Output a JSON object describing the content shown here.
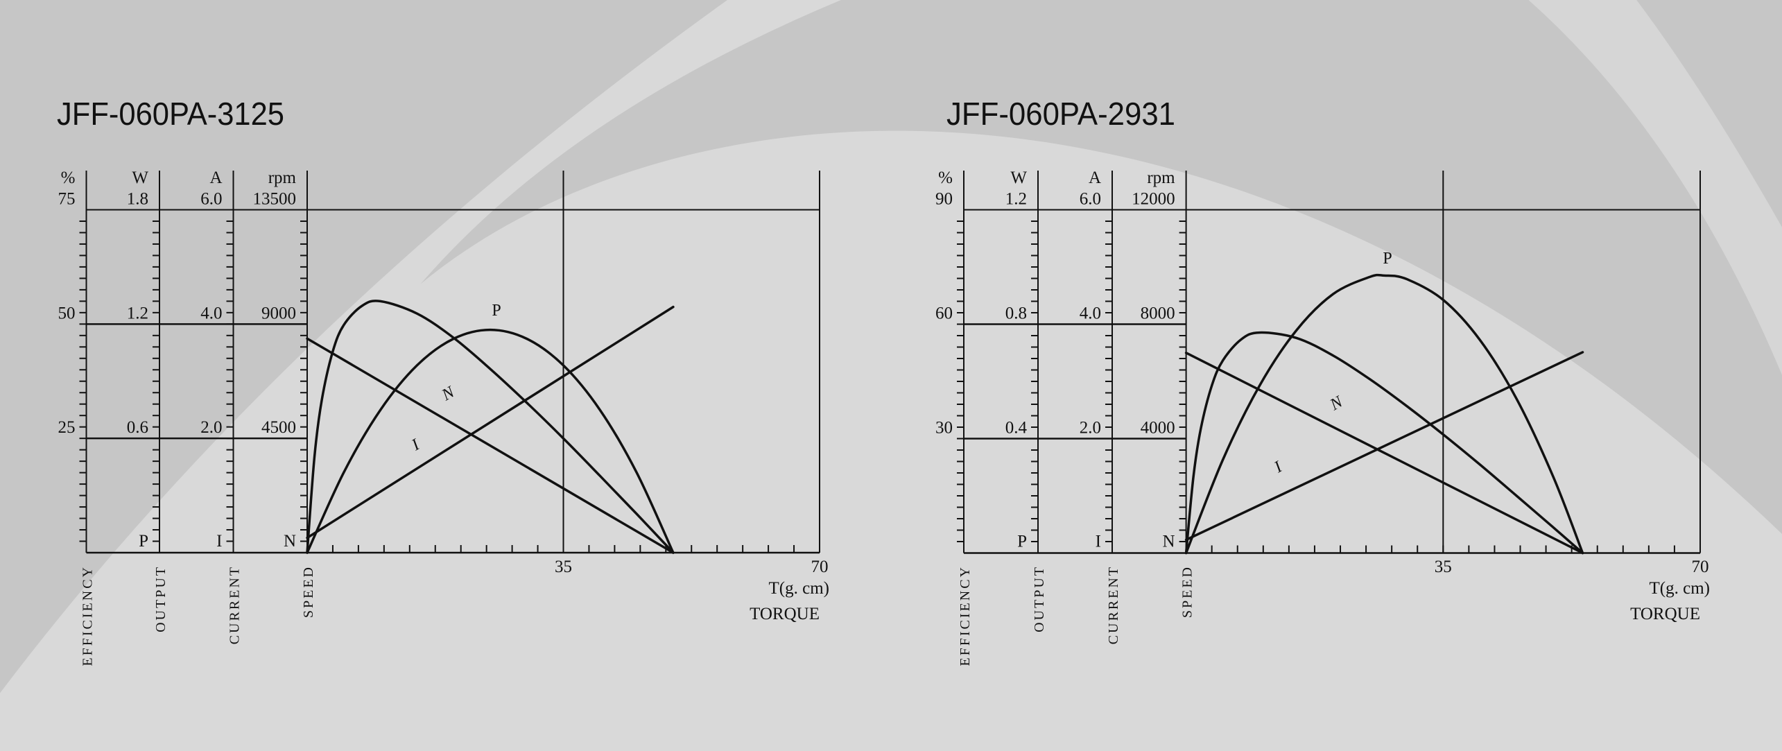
{
  "background": {
    "base": "#d9d9d9",
    "band": "#c6c6c6"
  },
  "chart_data": [
    {
      "type": "line",
      "title": "JFF-060PA-3125",
      "grid": true,
      "x": {
        "label": "T(g. cm)",
        "name": "TORQUE",
        "range": [
          0,
          70
        ],
        "ticks": [
          35,
          70
        ],
        "tick_labels": [
          "35",
          "70"
        ]
      },
      "y_axes": [
        {
          "key": "efficiency",
          "name": "EFFICIENCY",
          "unit": "%",
          "range": [
            0,
            75
          ],
          "tick_labels": [
            "25",
            "50",
            "75"
          ],
          "marker": ""
        },
        {
          "key": "output",
          "name": "OUTPUT",
          "unit": "W",
          "range": [
            0,
            1.8
          ],
          "tick_labels": [
            "0.6",
            "1.2",
            "1.8"
          ],
          "marker": "P"
        },
        {
          "key": "current",
          "name": "CURRENT",
          "unit": "A",
          "range": [
            0,
            6.0
          ],
          "tick_labels": [
            "2.0",
            "4.0",
            "6.0"
          ],
          "marker": "I"
        },
        {
          "key": "speed",
          "name": "SPEED",
          "unit": "rpm",
          "range": [
            0,
            13500
          ],
          "tick_labels": [
            "4500",
            "9000",
            "13500"
          ],
          "marker": "N"
        }
      ],
      "series": [
        {
          "name": "N",
          "axis": "speed",
          "x": [
            0,
            50
          ],
          "y": [
            8430,
            0
          ]
        },
        {
          "name": "I",
          "axis": "current",
          "x": [
            0,
            50
          ],
          "y": [
            0.26,
            4.3
          ]
        },
        {
          "name": "P",
          "axis": "output",
          "x": [
            0,
            5,
            10,
            15,
            20,
            25,
            30,
            35,
            40,
            45,
            50
          ],
          "y": [
            0,
            0.421,
            0.749,
            0.983,
            1.123,
            1.17,
            1.123,
            0.983,
            0.749,
            0.421,
            0
          ]
        },
        {
          "name": "",
          "axis": "efficiency",
          "x": [
            0,
            1,
            2,
            3.5,
            5,
            7.5,
            10,
            15,
            20,
            25,
            30,
            35,
            40,
            45,
            50
          ],
          "y": [
            0,
            21.1,
            33.4,
            44.0,
            49.8,
            54.0,
            55.0,
            52.3,
            47.0,
            40.2,
            32.8,
            25.0,
            16.8,
            8.5,
            0
          ]
        }
      ]
    },
    {
      "type": "line",
      "title": "JFF-060PA-2931",
      "grid": true,
      "x": {
        "label": "T(g. cm)",
        "name": "TORQUE",
        "range": [
          0,
          70
        ],
        "ticks": [
          35,
          70
        ],
        "tick_labels": [
          "35",
          "70"
        ]
      },
      "y_axes": [
        {
          "key": "efficiency",
          "name": "EFFICIENCY",
          "unit": "%",
          "range": [
            0,
            90
          ],
          "tick_labels": [
            "30",
            "60",
            "90"
          ],
          "marker": ""
        },
        {
          "key": "output",
          "name": "OUTPUT",
          "unit": "W",
          "range": [
            0,
            1.2
          ],
          "tick_labels": [
            "0.4",
            "0.8",
            "1.2"
          ],
          "marker": "P"
        },
        {
          "key": "current",
          "name": "CURRENT",
          "unit": "A",
          "range": [
            0,
            6.0
          ],
          "tick_labels": [
            "2.0",
            "4.0",
            "6.0"
          ],
          "marker": "I"
        },
        {
          "key": "speed",
          "name": "SPEED",
          "unit": "rpm",
          "range": [
            0,
            12000
          ],
          "tick_labels": [
            "4000",
            "8000",
            "12000"
          ],
          "marker": "N"
        }
      ],
      "series": [
        {
          "name": "N",
          "axis": "speed",
          "x": [
            0,
            54
          ],
          "y": [
            7000,
            0
          ]
        },
        {
          "name": "I",
          "axis": "current",
          "x": [
            0,
            54
          ],
          "y": [
            0.23,
            3.51
          ]
        },
        {
          "name": "P",
          "axis": "output",
          "x": [
            0,
            5,
            10,
            15,
            20,
            25,
            27,
            30,
            35,
            40,
            45,
            50,
            54
          ],
          "y": [
            0,
            0.326,
            0.585,
            0.778,
            0.905,
            0.965,
            0.97,
            0.958,
            0.885,
            0.745,
            0.539,
            0.266,
            0
          ]
        },
        {
          "name": "",
          "axis": "efficiency",
          "x": [
            0,
            1,
            2,
            3.5,
            5,
            7.5,
            10,
            15,
            20,
            25,
            30,
            35,
            40,
            45,
            50,
            54
          ],
          "y": [
            0,
            20.1,
            32.6,
            43.9,
            50.5,
            56.0,
            57.8,
            56.4,
            51.8,
            45.6,
            38.6,
            31.1,
            23.2,
            15.0,
            6.7,
            0
          ]
        }
      ]
    }
  ]
}
